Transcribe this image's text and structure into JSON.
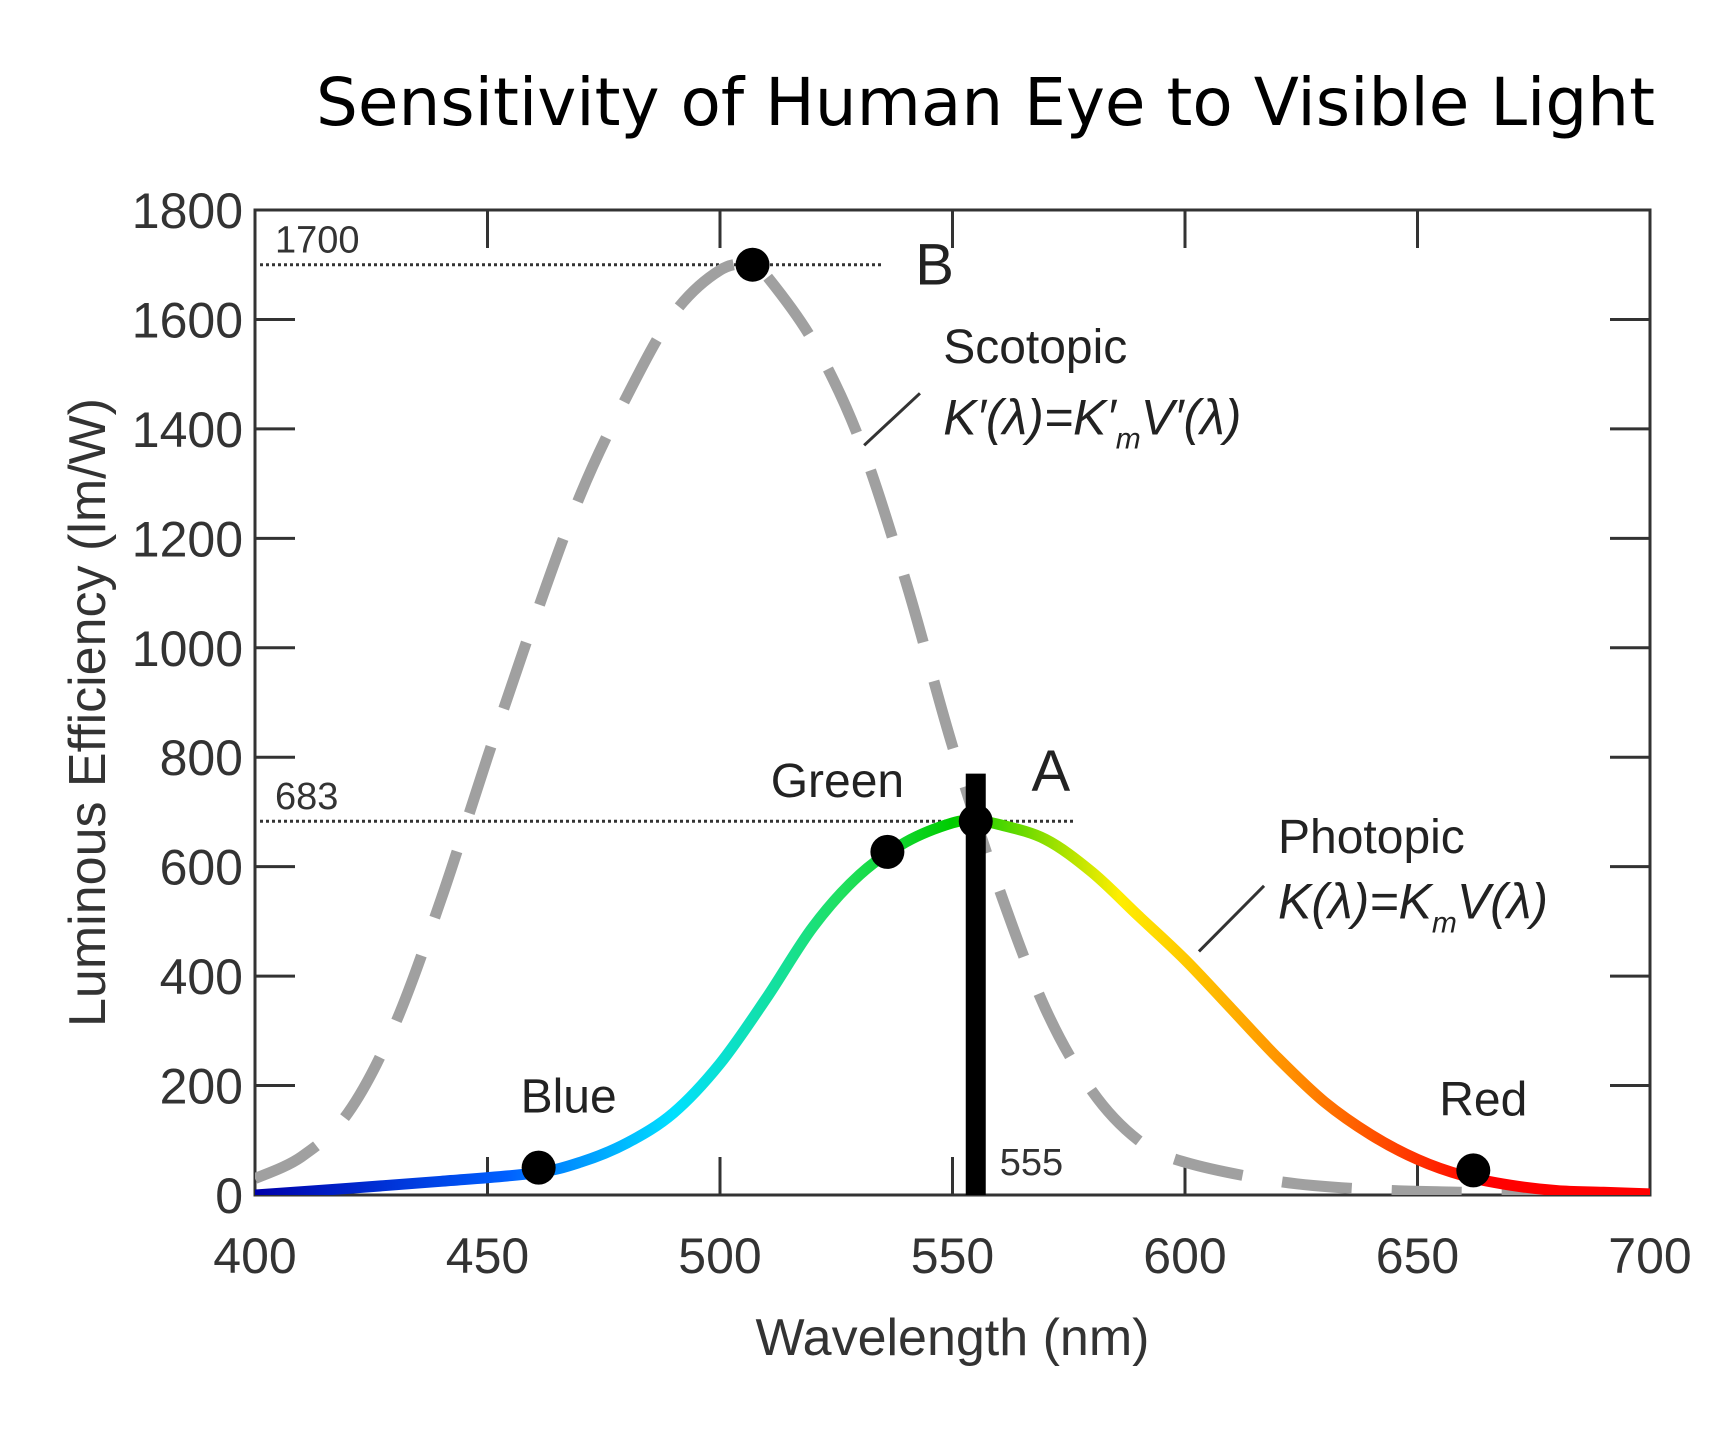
{
  "chart_data": {
    "type": "line",
    "title": "Sensitivity of Human Eye to Visible Light",
    "xlabel": "Wavelength (nm)",
    "ylabel": "Luminous Efficiency (lm/W)",
    "xlim": [
      400,
      700
    ],
    "ylim": [
      0,
      1800
    ],
    "xticks": [
      400,
      450,
      500,
      550,
      600,
      650,
      700
    ],
    "yticks": [
      0,
      200,
      400,
      600,
      800,
      1000,
      1200,
      1400,
      1600,
      1800
    ],
    "grid": false,
    "series": [
      {
        "name": "Scotopic",
        "formula": {
          "main": "K′(λ)=K′",
          "sub": "m",
          "tail": "V′(λ)"
        },
        "style": "dashed",
        "color": "#a0a0a0",
        "x": [
          400,
          410,
          420,
          430,
          440,
          450,
          460,
          470,
          480,
          490,
          500,
          507,
          510,
          520,
          530,
          540,
          550,
          560,
          570,
          580,
          590,
          600,
          620,
          640,
          660,
          680,
          700
        ],
        "y": [
          30,
          70,
          150,
          310,
          540,
          800,
          1050,
          1280,
          1460,
          1610,
          1690,
          1700,
          1680,
          1560,
          1380,
          1120,
          820,
          560,
          340,
          190,
          100,
          60,
          25,
          10,
          5,
          2,
          1
        ]
      },
      {
        "name": "Photopic",
        "formula": {
          "main": "K(λ)=K",
          "sub": "m",
          "tail": "V(λ)"
        },
        "style": "solid",
        "color": "spectrum",
        "x": [
          400,
          420,
          440,
          460,
          470,
          480,
          490,
          500,
          510,
          520,
          530,
          540,
          550,
          555,
          560,
          570,
          580,
          590,
          600,
          610,
          620,
          630,
          640,
          650,
          660,
          670,
          680,
          690,
          700
        ],
        "y": [
          0,
          12,
          25,
          40,
          60,
          95,
          150,
          240,
          360,
          490,
          585,
          645,
          680,
          683,
          677,
          650,
          590,
          510,
          430,
          340,
          250,
          170,
          110,
          65,
          35,
          18,
          8,
          5,
          2
        ]
      }
    ],
    "reference_lines": [
      {
        "label": "1700",
        "y": 1700
      },
      {
        "label": "683",
        "y": 683
      }
    ],
    "points": [
      {
        "label": "B",
        "x": 507,
        "y": 1700
      },
      {
        "label": "A",
        "x": 555,
        "y": 683
      },
      {
        "label": "Blue",
        "x": 461,
        "y": 50
      },
      {
        "label": "Green",
        "x": 536,
        "y": 627
      },
      {
        "label": "Red",
        "x": 662,
        "y": 45
      }
    ],
    "marker_line": {
      "label": "555",
      "x": 555,
      "y_top": 770
    },
    "colors": {
      "scotopic": "#a0a0a0",
      "spectrum": [
        "#0000aa",
        "#0060ff",
        "#00e0ff",
        "#20e060",
        "#00cc00",
        "#ffee00",
        "#ff8800",
        "#ff0000"
      ]
    }
  }
}
